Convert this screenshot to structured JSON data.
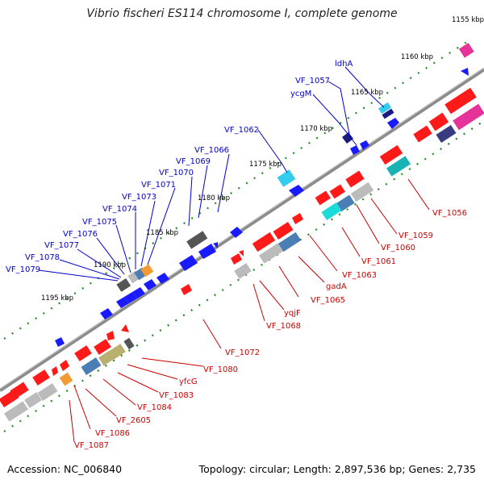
{
  "title": "Vibrio fischeri ES114 chromosome I, complete genome",
  "footer": {
    "accession": "Accession: NC_006840",
    "summary": "Topology: circular; Length: 2,897,536 bp; Genes: 2,735"
  },
  "colors": {
    "backbone": "#8c8c8c",
    "tick": "#1e8c1e",
    "forward_label": "#0000cc",
    "reverse_label": "#cc0000"
  },
  "kbp_labels": [
    "1155 kbp",
    "1160 kbp",
    "1165 kbp",
    "1170 kbp",
    "1175 kbp",
    "1180 kbp",
    "1185 kbp",
    "1190 kbp",
    "1195 kbp"
  ],
  "forward_labels": [
    "ldhA",
    "VF_1057",
    "ycgM",
    "VF_1062",
    "VF_1066",
    "VF_1069",
    "VF_1070",
    "VF_1071",
    "VF_1073",
    "VF_1074",
    "VF_1075",
    "VF_1076",
    "VF_1077",
    "VF_1078",
    "VF_1079"
  ],
  "reverse_labels": [
    "VF_1056",
    "VF_1059",
    "VF_1060",
    "VF_1061",
    "VF_1063",
    "gadA",
    "VF_1065",
    "yqjF",
    "VF_1068",
    "VF_1072",
    "VF_1080",
    "yfcG",
    "VF_1083",
    "VF_1084",
    "VF_2605",
    "VF_1086",
    "VF_1087"
  ]
}
